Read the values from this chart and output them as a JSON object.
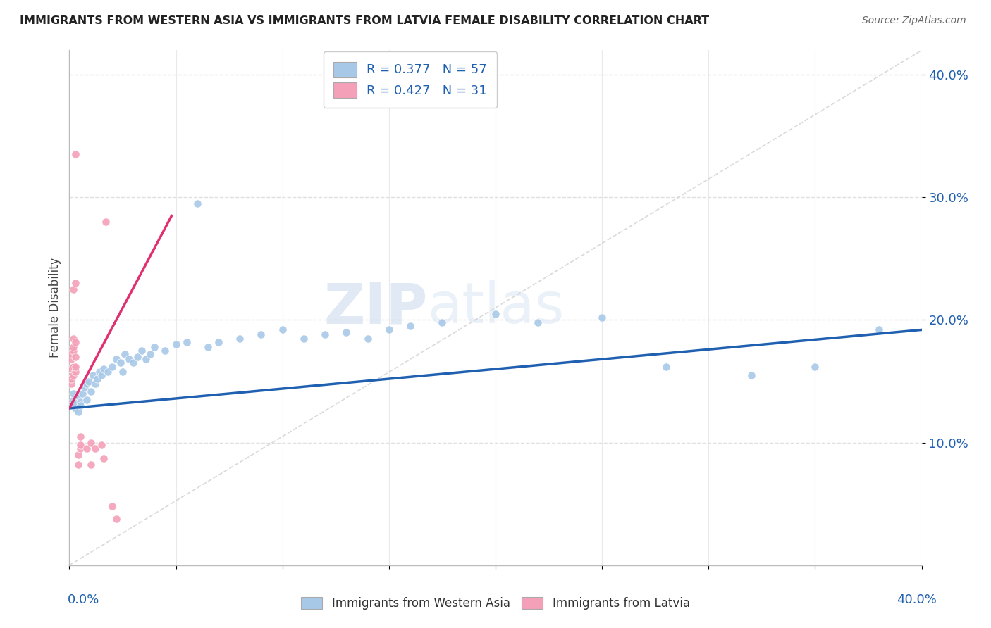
{
  "title": "IMMIGRANTS FROM WESTERN ASIA VS IMMIGRANTS FROM LATVIA FEMALE DISABILITY CORRELATION CHART",
  "source": "Source: ZipAtlas.com",
  "ylabel": "Female Disability",
  "R_blue": 0.377,
  "N_blue": 57,
  "R_pink": 0.427,
  "N_pink": 31,
  "legend_blue": "Immigrants from Western Asia",
  "legend_pink": "Immigrants from Latvia",
  "blue_color": "#a8c8e8",
  "pink_color": "#f4a0b8",
  "blue_line_color": "#2060b0",
  "pink_line_color": "#e03070",
  "accent_color": "#2060b0",
  "blue_scatter": [
    [
      0.001,
      0.13
    ],
    [
      0.002,
      0.135
    ],
    [
      0.002,
      0.14
    ],
    [
      0.003,
      0.128
    ],
    [
      0.003,
      0.132
    ],
    [
      0.004,
      0.138
    ],
    [
      0.004,
      0.125
    ],
    [
      0.005,
      0.133
    ],
    [
      0.005,
      0.13
    ],
    [
      0.006,
      0.14
    ],
    [
      0.007,
      0.145
    ],
    [
      0.008,
      0.148
    ],
    [
      0.008,
      0.135
    ],
    [
      0.009,
      0.15
    ],
    [
      0.01,
      0.142
    ],
    [
      0.011,
      0.155
    ],
    [
      0.012,
      0.148
    ],
    [
      0.013,
      0.152
    ],
    [
      0.014,
      0.158
    ],
    [
      0.015,
      0.155
    ],
    [
      0.016,
      0.16
    ],
    [
      0.018,
      0.158
    ],
    [
      0.02,
      0.162
    ],
    [
      0.022,
      0.168
    ],
    [
      0.024,
      0.165
    ],
    [
      0.025,
      0.158
    ],
    [
      0.026,
      0.172
    ],
    [
      0.028,
      0.168
    ],
    [
      0.03,
      0.165
    ],
    [
      0.032,
      0.17
    ],
    [
      0.034,
      0.175
    ],
    [
      0.036,
      0.168
    ],
    [
      0.038,
      0.172
    ],
    [
      0.04,
      0.178
    ],
    [
      0.045,
      0.175
    ],
    [
      0.05,
      0.18
    ],
    [
      0.055,
      0.182
    ],
    [
      0.06,
      0.295
    ],
    [
      0.065,
      0.178
    ],
    [
      0.07,
      0.182
    ],
    [
      0.08,
      0.185
    ],
    [
      0.09,
      0.188
    ],
    [
      0.1,
      0.192
    ],
    [
      0.11,
      0.185
    ],
    [
      0.12,
      0.188
    ],
    [
      0.13,
      0.19
    ],
    [
      0.14,
      0.185
    ],
    [
      0.15,
      0.192
    ],
    [
      0.16,
      0.195
    ],
    [
      0.175,
      0.198
    ],
    [
      0.2,
      0.205
    ],
    [
      0.22,
      0.198
    ],
    [
      0.25,
      0.202
    ],
    [
      0.28,
      0.162
    ],
    [
      0.32,
      0.155
    ],
    [
      0.35,
      0.162
    ],
    [
      0.38,
      0.192
    ]
  ],
  "pink_scatter": [
    [
      0.001,
      0.148
    ],
    [
      0.001,
      0.152
    ],
    [
      0.001,
      0.16
    ],
    [
      0.001,
      0.168
    ],
    [
      0.001,
      0.172
    ],
    [
      0.002,
      0.155
    ],
    [
      0.002,
      0.162
    ],
    [
      0.002,
      0.175
    ],
    [
      0.002,
      0.178
    ],
    [
      0.002,
      0.185
    ],
    [
      0.002,
      0.225
    ],
    [
      0.003,
      0.158
    ],
    [
      0.003,
      0.162
    ],
    [
      0.003,
      0.17
    ],
    [
      0.003,
      0.182
    ],
    [
      0.003,
      0.23
    ],
    [
      0.003,
      0.335
    ],
    [
      0.004,
      0.082
    ],
    [
      0.004,
      0.09
    ],
    [
      0.005,
      0.095
    ],
    [
      0.005,
      0.098
    ],
    [
      0.005,
      0.105
    ],
    [
      0.008,
      0.095
    ],
    [
      0.01,
      0.082
    ],
    [
      0.01,
      0.1
    ],
    [
      0.012,
      0.095
    ],
    [
      0.015,
      0.098
    ],
    [
      0.016,
      0.087
    ],
    [
      0.017,
      0.28
    ],
    [
      0.02,
      0.048
    ],
    [
      0.022,
      0.038
    ]
  ],
  "xmin": 0.0,
  "xmax": 0.4,
  "ymin": 0.0,
  "ymax": 0.42,
  "blue_trend_x": [
    0.0,
    0.4
  ],
  "blue_trend_y": [
    0.128,
    0.192
  ],
  "pink_trend_x": [
    0.0,
    0.048
  ],
  "pink_trend_y": [
    0.128,
    0.285
  ],
  "watermark_zip": "ZIP",
  "watermark_atlas": "atlas",
  "background_color": "#ffffff",
  "grid_color": "#e0e0e0",
  "diag_color": "#d0d0d0"
}
